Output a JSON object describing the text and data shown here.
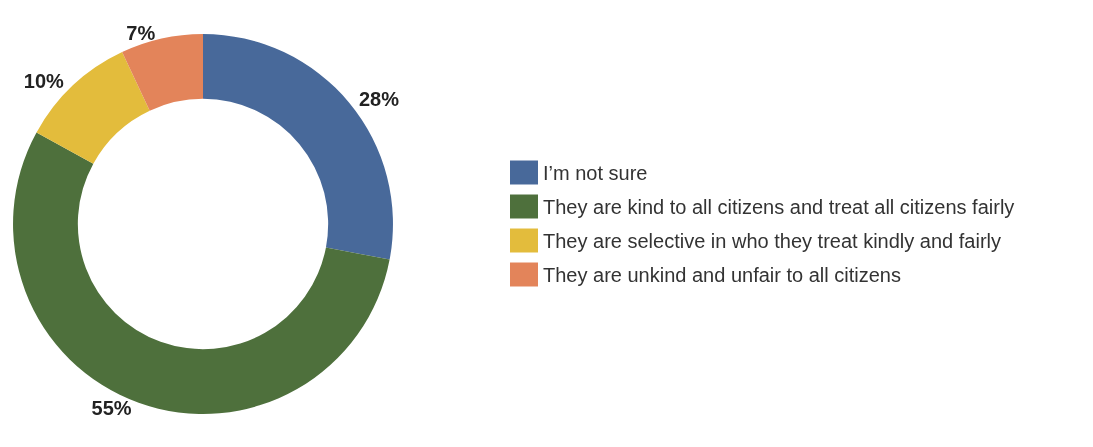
{
  "chart_data": {
    "type": "donut",
    "categories": [
      "I’m not sure",
      "They are kind to all citizens and treat all citizens fairly",
      "They are selective in who they treat kindly and fairly",
      "They are unkind and unfair to all citizens"
    ],
    "values": [
      28,
      55,
      10,
      7
    ],
    "colors": [
      "#48699a",
      "#4e703c",
      "#e3bc3c",
      "#e3845a"
    ],
    "value_labels": [
      "28%",
      "55%",
      "10%",
      "7%"
    ],
    "legend": "right"
  }
}
